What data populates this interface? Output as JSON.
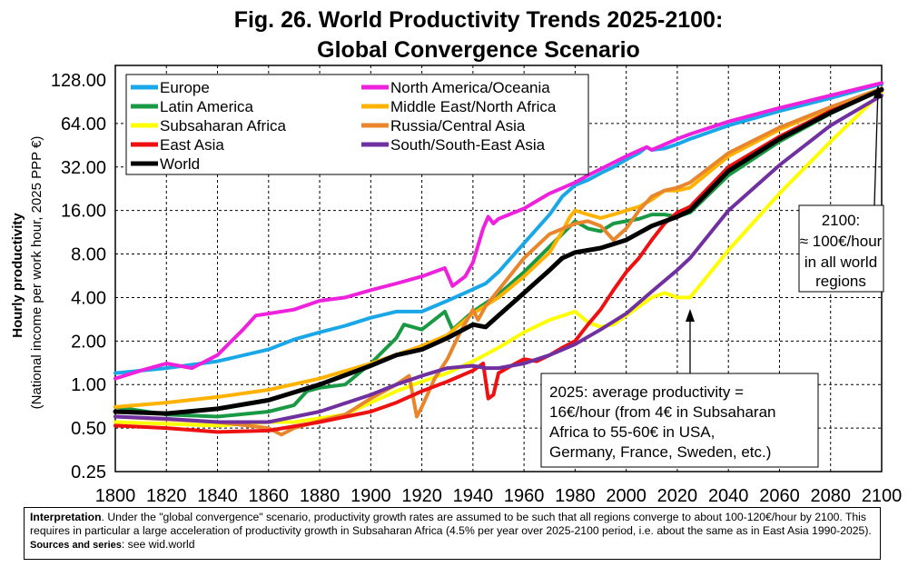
{
  "chart_data": {
    "type": "line",
    "title_line1": "Fig. 26. World Productivity Trends 2025-2100:",
    "title_line2": "Global Convergence Scenario",
    "ylabel": "Hourly productivity",
    "ylabel_sub": "(National income per work hour, 2025 PPP €)",
    "yscale": "log2",
    "ylim": [
      0.25,
      128
    ],
    "xlim": [
      1800,
      2100
    ],
    "y_ticks": [
      0.25,
      0.5,
      1,
      2,
      4,
      8,
      16,
      32,
      64,
      128
    ],
    "y_tick_labels": [
      "0.25",
      "0.50",
      "1.00",
      "2.00",
      "4.00",
      "8.00",
      "16.00",
      "32.00",
      "64.00",
      "128.00"
    ],
    "x_ticks": [
      1800,
      1820,
      1840,
      1860,
      1880,
      1900,
      1920,
      1940,
      1960,
      1980,
      2000,
      2020,
      2040,
      2060,
      2080,
      2100
    ],
    "x_tick_labels": [
      "1800",
      "1820",
      "1840",
      "1860",
      "1880",
      "1900",
      "1920",
      "1940",
      "1960",
      "1980",
      "2000",
      "2020",
      "2040",
      "2060",
      "2080",
      "2100"
    ],
    "grid": true,
    "legend_position": "top-left",
    "series": [
      {
        "name": "Europe",
        "color": "#1aa7e8",
        "width": 4,
        "points": [
          [
            1800,
            1.2
          ],
          [
            1820,
            1.3
          ],
          [
            1840,
            1.45
          ],
          [
            1860,
            1.75
          ],
          [
            1870,
            2.05
          ],
          [
            1880,
            2.3
          ],
          [
            1890,
            2.55
          ],
          [
            1900,
            2.9
          ],
          [
            1910,
            3.2
          ],
          [
            1920,
            3.2
          ],
          [
            1930,
            3.8
          ],
          [
            1938,
            4.4
          ],
          [
            1945,
            5.0
          ],
          [
            1950,
            6.0
          ],
          [
            1960,
            9.5
          ],
          [
            1970,
            15
          ],
          [
            1975,
            20
          ],
          [
            1980,
            24
          ],
          [
            1985,
            26
          ],
          [
            1990,
            29
          ],
          [
            1995,
            32
          ],
          [
            2000,
            36
          ],
          [
            2005,
            40
          ],
          [
            2008,
            44
          ],
          [
            2010,
            42
          ],
          [
            2015,
            43
          ],
          [
            2020,
            46
          ],
          [
            2025,
            50
          ],
          [
            2040,
            62
          ],
          [
            2060,
            78
          ],
          [
            2080,
            96
          ],
          [
            2100,
            120
          ]
        ]
      },
      {
        "name": "North America/Oceania",
        "color": "#ee22dd",
        "width": 4,
        "points": [
          [
            1800,
            1.1
          ],
          [
            1810,
            1.25
          ],
          [
            1820,
            1.4
          ],
          [
            1830,
            1.3
          ],
          [
            1840,
            1.6
          ],
          [
            1850,
            2.4
          ],
          [
            1855,
            3.0
          ],
          [
            1860,
            3.1
          ],
          [
            1870,
            3.3
          ],
          [
            1880,
            3.8
          ],
          [
            1890,
            4.0
          ],
          [
            1900,
            4.5
          ],
          [
            1910,
            5.0
          ],
          [
            1920,
            5.6
          ],
          [
            1929,
            6.4
          ],
          [
            1932,
            4.8
          ],
          [
            1937,
            5.6
          ],
          [
            1940,
            7.0
          ],
          [
            1944,
            12.0
          ],
          [
            1946,
            14.5
          ],
          [
            1948,
            13.0
          ],
          [
            1950,
            14.0
          ],
          [
            1960,
            16.5
          ],
          [
            1970,
            21
          ],
          [
            1980,
            25
          ],
          [
            1985,
            28
          ],
          [
            1990,
            31
          ],
          [
            2000,
            38
          ],
          [
            2008,
            44
          ],
          [
            2010,
            42
          ],
          [
            2020,
            50
          ],
          [
            2025,
            54
          ],
          [
            2040,
            66
          ],
          [
            2060,
            82
          ],
          [
            2080,
            100
          ],
          [
            2100,
            122
          ]
        ]
      },
      {
        "name": "Latin America",
        "color": "#1a9944",
        "width": 4,
        "points": [
          [
            1800,
            0.7
          ],
          [
            1820,
            0.62
          ],
          [
            1840,
            0.6
          ],
          [
            1860,
            0.65
          ],
          [
            1870,
            0.72
          ],
          [
            1875,
            0.9
          ],
          [
            1880,
            0.95
          ],
          [
            1890,
            1.0
          ],
          [
            1900,
            1.4
          ],
          [
            1910,
            2.1
          ],
          [
            1913,
            2.6
          ],
          [
            1920,
            2.4
          ],
          [
            1929,
            3.2
          ],
          [
            1932,
            2.4
          ],
          [
            1940,
            3.2
          ],
          [
            1950,
            4.2
          ],
          [
            1960,
            6.0
          ],
          [
            1970,
            9.0
          ],
          [
            1980,
            13.5
          ],
          [
            1985,
            12.0
          ],
          [
            1990,
            11.5
          ],
          [
            1995,
            13.0
          ],
          [
            2000,
            13.5
          ],
          [
            2005,
            14.0
          ],
          [
            2010,
            15.0
          ],
          [
            2015,
            15.0
          ],
          [
            2020,
            14.5
          ],
          [
            2025,
            15.5
          ],
          [
            2040,
            28
          ],
          [
            2060,
            48
          ],
          [
            2080,
            75
          ],
          [
            2100,
            110
          ]
        ]
      },
      {
        "name": "Middle East/North Africa",
        "color": "#ffb300",
        "width": 4,
        "points": [
          [
            1800,
            0.7
          ],
          [
            1820,
            0.75
          ],
          [
            1840,
            0.82
          ],
          [
            1860,
            0.92
          ],
          [
            1880,
            1.1
          ],
          [
            1900,
            1.4
          ],
          [
            1920,
            1.85
          ],
          [
            1930,
            2.2
          ],
          [
            1940,
            3.1
          ],
          [
            1950,
            4.0
          ],
          [
            1960,
            5.6
          ],
          [
            1970,
            8.2
          ],
          [
            1975,
            11.5
          ],
          [
            1978,
            14.5
          ],
          [
            1980,
            16.0
          ],
          [
            1985,
            15.0
          ],
          [
            1990,
            14.2
          ],
          [
            1995,
            15.0
          ],
          [
            2000,
            16.0
          ],
          [
            2005,
            17.0
          ],
          [
            2010,
            19.0
          ],
          [
            2015,
            22.0
          ],
          [
            2020,
            22.0
          ],
          [
            2025,
            23.0
          ],
          [
            2040,
            38
          ],
          [
            2060,
            58
          ],
          [
            2080,
            82
          ],
          [
            2100,
            112
          ]
        ]
      },
      {
        "name": "Subsaharan Africa",
        "color": "#ffff00",
        "width": 4,
        "points": [
          [
            1800,
            0.55
          ],
          [
            1840,
            0.52
          ],
          [
            1860,
            0.55
          ],
          [
            1870,
            0.55
          ],
          [
            1890,
            0.62
          ],
          [
            1900,
            0.75
          ],
          [
            1910,
            0.9
          ],
          [
            1920,
            1.05
          ],
          [
            1930,
            1.2
          ],
          [
            1940,
            1.45
          ],
          [
            1950,
            1.8
          ],
          [
            1960,
            2.3
          ],
          [
            1970,
            2.8
          ],
          [
            1980,
            3.2
          ],
          [
            1985,
            2.7
          ],
          [
            1990,
            2.5
          ],
          [
            1995,
            2.6
          ],
          [
            2000,
            3.0
          ],
          [
            2010,
            4.0
          ],
          [
            2015,
            4.3
          ],
          [
            2020,
            4.0
          ],
          [
            2025,
            4.0
          ],
          [
            2040,
            8.5
          ],
          [
            2060,
            21
          ],
          [
            2080,
            48
          ],
          [
            2100,
            105
          ]
        ]
      },
      {
        "name": "Russia/Central Asia",
        "color": "#e8862e",
        "width": 4,
        "points": [
          [
            1800,
            0.6
          ],
          [
            1840,
            0.55
          ],
          [
            1860,
            0.5
          ],
          [
            1865,
            0.45
          ],
          [
            1870,
            0.5
          ],
          [
            1880,
            0.56
          ],
          [
            1890,
            0.62
          ],
          [
            1900,
            0.8
          ],
          [
            1910,
            1.0
          ],
          [
            1915,
            1.15
          ],
          [
            1918,
            0.6
          ],
          [
            1920,
            0.7
          ],
          [
            1925,
            1.1
          ],
          [
            1930,
            1.5
          ],
          [
            1935,
            2.3
          ],
          [
            1940,
            3.3
          ],
          [
            1942,
            2.8
          ],
          [
            1945,
            3.5
          ],
          [
            1950,
            4.5
          ],
          [
            1960,
            7.5
          ],
          [
            1970,
            11.0
          ],
          [
            1980,
            13.0
          ],
          [
            1985,
            13.5
          ],
          [
            1990,
            12.5
          ],
          [
            1995,
            10.0
          ],
          [
            2000,
            12.0
          ],
          [
            2005,
            16.0
          ],
          [
            2010,
            20.0
          ],
          [
            2015,
            22.0
          ],
          [
            2020,
            23.0
          ],
          [
            2025,
            25.0
          ],
          [
            2040,
            40
          ],
          [
            2060,
            60
          ],
          [
            2080,
            83
          ],
          [
            2100,
            112
          ]
        ]
      },
      {
        "name": "East Asia",
        "color": "#ee1111",
        "width": 4,
        "points": [
          [
            1800,
            0.52
          ],
          [
            1820,
            0.5
          ],
          [
            1840,
            0.47
          ],
          [
            1860,
            0.48
          ],
          [
            1880,
            0.55
          ],
          [
            1900,
            0.65
          ],
          [
            1910,
            0.75
          ],
          [
            1920,
            0.9
          ],
          [
            1930,
            1.05
          ],
          [
            1940,
            1.25
          ],
          [
            1944,
            1.4
          ],
          [
            1946,
            0.8
          ],
          [
            1948,
            0.85
          ],
          [
            1950,
            1.2
          ],
          [
            1955,
            1.35
          ],
          [
            1960,
            1.5
          ],
          [
            1965,
            1.45
          ],
          [
            1970,
            1.6
          ],
          [
            1975,
            1.8
          ],
          [
            1980,
            2.0
          ],
          [
            1985,
            2.6
          ],
          [
            1990,
            3.3
          ],
          [
            1995,
            4.5
          ],
          [
            2000,
            6.0
          ],
          [
            2005,
            7.5
          ],
          [
            2010,
            10.0
          ],
          [
            2015,
            13.0
          ],
          [
            2020,
            15.5
          ],
          [
            2025,
            17.0
          ],
          [
            2040,
            32
          ],
          [
            2060,
            52
          ],
          [
            2080,
            78
          ],
          [
            2100,
            108
          ]
        ]
      },
      {
        "name": "South/South-East Asia",
        "color": "#7030a0",
        "width": 4,
        "points": [
          [
            1800,
            0.6
          ],
          [
            1820,
            0.58
          ],
          [
            1840,
            0.55
          ],
          [
            1860,
            0.55
          ],
          [
            1880,
            0.65
          ],
          [
            1900,
            0.85
          ],
          [
            1910,
            1.0
          ],
          [
            1920,
            1.15
          ],
          [
            1930,
            1.3
          ],
          [
            1940,
            1.35
          ],
          [
            1945,
            1.3
          ],
          [
            1950,
            1.3
          ],
          [
            1960,
            1.4
          ],
          [
            1970,
            1.6
          ],
          [
            1980,
            1.9
          ],
          [
            1990,
            2.4
          ],
          [
            2000,
            3.1
          ],
          [
            2010,
            4.4
          ],
          [
            2020,
            6.2
          ],
          [
            2025,
            7.5
          ],
          [
            2040,
            16
          ],
          [
            2060,
            33
          ],
          [
            2080,
            62
          ],
          [
            2100,
            100
          ]
        ]
      },
      {
        "name": "World",
        "color": "#000000",
        "width": 5,
        "points": [
          [
            1800,
            0.65
          ],
          [
            1820,
            0.63
          ],
          [
            1840,
            0.68
          ],
          [
            1860,
            0.78
          ],
          [
            1880,
            1.0
          ],
          [
            1900,
            1.35
          ],
          [
            1910,
            1.6
          ],
          [
            1920,
            1.75
          ],
          [
            1930,
            2.1
          ],
          [
            1940,
            2.6
          ],
          [
            1945,
            2.5
          ],
          [
            1950,
            3.0
          ],
          [
            1960,
            4.3
          ],
          [
            1970,
            6.2
          ],
          [
            1975,
            7.5
          ],
          [
            1980,
            8.2
          ],
          [
            1990,
            8.8
          ],
          [
            2000,
            10.0
          ],
          [
            2010,
            12.5
          ],
          [
            2020,
            14.5
          ],
          [
            2025,
            16.0
          ],
          [
            2040,
            30
          ],
          [
            2060,
            50
          ],
          [
            2080,
            76
          ],
          [
            2100,
            110
          ]
        ]
      }
    ],
    "legend": [
      "Europe",
      "North America/Oceania",
      "Latin America",
      "Middle East/North Africa",
      "Subsaharan Africa",
      "Russia/Central Asia",
      "East Asia",
      "South/South-East Asia",
      "World"
    ],
    "annotations": {
      "a2100": {
        "lines": [
          "2100:",
          "≈ 100€/hour",
          "in all world",
          "regions"
        ],
        "arrow_to": [
          2100,
          120
        ]
      },
      "a2025": {
        "lines": [
          "2025: average productivity =",
          "16€/hour (from 4€ in Subsaharan",
          "Africa to 55-60€ in USA,",
          "Germany, France, Sweden, etc.)"
        ],
        "arrow_to": [
          2025,
          4.0
        ]
      }
    }
  },
  "interpretation": {
    "label": "Interpretation",
    "text": ". Under the \"global convergence\" scenario, productivity growth rates are assumed to be such that all regions converge to about 100-120€/hour by 2100. This requires in particular a large acceleration of productivity growth in Subsaharan Africa (4.5% per year over 2025-2100 period, i.e. about the same as in East Asia 1990-2025). ",
    "sources": "Sources and series",
    "sources_tail": ": see wid.world"
  }
}
